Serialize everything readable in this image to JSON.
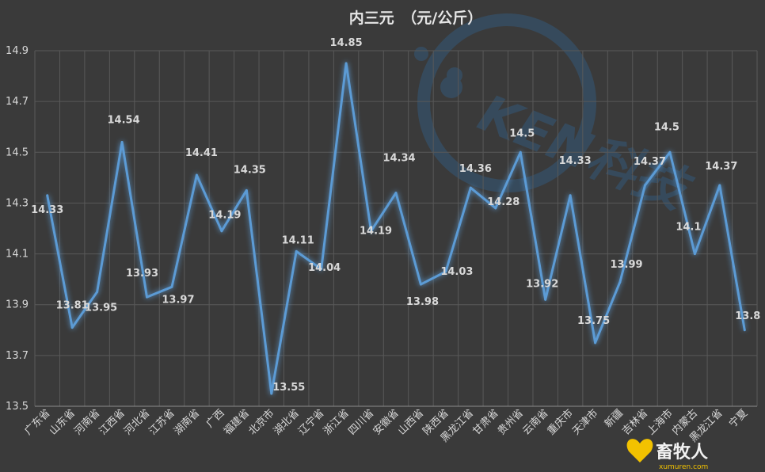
{
  "chart_data": {
    "type": "line",
    "title": "内三元　（元/公斤）",
    "xlabel": "",
    "ylabel": "",
    "ylim": [
      13.5,
      14.9
    ],
    "yticks": [
      "13.5",
      "13.7",
      "13.9",
      "14.1",
      "14.3",
      "14.5",
      "14.7",
      "14.9"
    ],
    "grid": true,
    "legend": "none",
    "categories": [
      "广东省",
      "山东省",
      "河南省",
      "江西省",
      "河北省",
      "江苏省",
      "湖南省",
      "广西",
      "福建省",
      "北京市",
      "湖北省",
      "辽宁省",
      "浙江省",
      "四川省",
      "安徽省",
      "山西省",
      "陕西省",
      "黑龙江省",
      "甘肃省",
      "贵州省",
      "云南省",
      "重庆市",
      "天津市",
      "新疆",
      "吉林省",
      "上海市",
      "内蒙古",
      "黑龙江省",
      "宁夏"
    ],
    "series": [
      {
        "values": [
          14.33,
          13.81,
          13.95,
          14.54,
          13.93,
          13.97,
          14.41,
          14.19,
          14.35,
          13.55,
          14.11,
          14.04,
          14.85,
          14.19,
          14.34,
          13.98,
          14.03,
          14.36,
          14.28,
          14.5,
          13.92,
          14.33,
          13.75,
          13.99,
          14.37,
          14.5,
          14.1,
          14.37,
          13.8
        ],
        "labels": [
          "14.33",
          "13.81",
          "13.95",
          "14.54",
          "13.93",
          "13.97",
          "14.41",
          "14.19",
          "14.35",
          "13.55",
          "14.11",
          "14.04",
          "14.85",
          "14.19",
          "14.34",
          "13.98",
          "14.03",
          "14.36",
          "14.28",
          "14.5",
          "13.92",
          "14.33",
          "13.75",
          "13.99",
          "14.37",
          "14.5",
          "14.1",
          "14.37",
          "13.8"
        ],
        "color": "#5b9bd5"
      }
    ]
  },
  "watermarks": {
    "ken_logo": "KEN科技",
    "site_name": "畜牧人",
    "site_url": "xumuren.com"
  },
  "colors": {
    "background": "#3a3a3a",
    "line": "#5b9bd5",
    "glow": "#5b9bd5"
  }
}
